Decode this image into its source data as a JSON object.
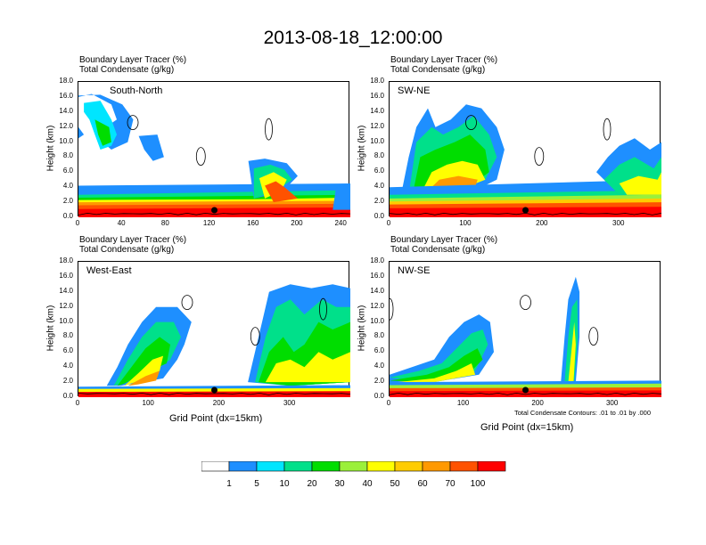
{
  "title": "2013-08-18_12:00:00",
  "panel_header_line1": "Boundary Layer Tracer   (%)",
  "panel_header_line2": "Total Condensate   (g/kg)",
  "y_axis_label": "Height (km)",
  "x_axis_label": "Grid Point (dx=15km)",
  "contour_note": "Total Condensate Contours: .01 to .01 by .000",
  "panels": [
    {
      "name": "South-North",
      "xticks": [
        "0",
        "40",
        "80",
        "120",
        "160",
        "200",
        "240"
      ],
      "xmax": 248
    },
    {
      "name": "SW-NE",
      "xticks": [
        "0",
        "100",
        "200",
        "300"
      ],
      "xmax": 355
    },
    {
      "name": "West-East",
      "xticks": [
        "0",
        "100",
        "200",
        "300"
      ],
      "xmax": 385
    },
    {
      "name": "NW-SE",
      "xticks": [
        "0",
        "100",
        "200",
        "300"
      ],
      "xmax": 365
    }
  ],
  "yticks": [
    "0.0",
    "2.0",
    "4.0",
    "6.0",
    "8.0",
    "10.0",
    "12.0",
    "14.0",
    "16.0",
    "18.0"
  ],
  "colorbar": {
    "labels": [
      "1",
      "5",
      "10",
      "20",
      "30",
      "40",
      "50",
      "60",
      "70",
      "100"
    ],
    "colors": [
      "#ffffff",
      "#1e8fff",
      "#00e5ff",
      "#00e08a",
      "#00dd00",
      "#9bf03a",
      "#ffff00",
      "#ffcc00",
      "#ff9900",
      "#ff5200",
      "#ff0000"
    ]
  },
  "chart_data": {
    "type": "heatmap",
    "title": "2013-08-18_12:00:00",
    "series": [
      {
        "name": "South-North",
        "xlabel": "",
        "ylabel": "Height (km)",
        "xlim": [
          0,
          248
        ],
        "ylim": [
          0,
          18
        ]
      },
      {
        "name": "SW-NE",
        "xlabel": "",
        "ylabel": "Height (km)",
        "xlim": [
          0,
          355
        ],
        "ylim": [
          0,
          18
        ]
      },
      {
        "name": "West-East",
        "xlabel": "Grid Point (dx=15km)",
        "ylabel": "Height (km)",
        "xlim": [
          0,
          385
        ],
        "ylim": [
          0,
          18
        ]
      },
      {
        "name": "NW-SE",
        "xlabel": "Grid Point (dx=15km)",
        "ylabel": "Height (km)",
        "xlim": [
          0,
          365
        ],
        "ylim": [
          0,
          18
        ]
      }
    ],
    "filled_variable": "Boundary Layer Tracer (%)",
    "contour_variable": "Total Condensate (g/kg)",
    "levels": [
      1,
      5,
      10,
      20,
      30,
      40,
      50,
      60,
      70,
      100
    ]
  }
}
